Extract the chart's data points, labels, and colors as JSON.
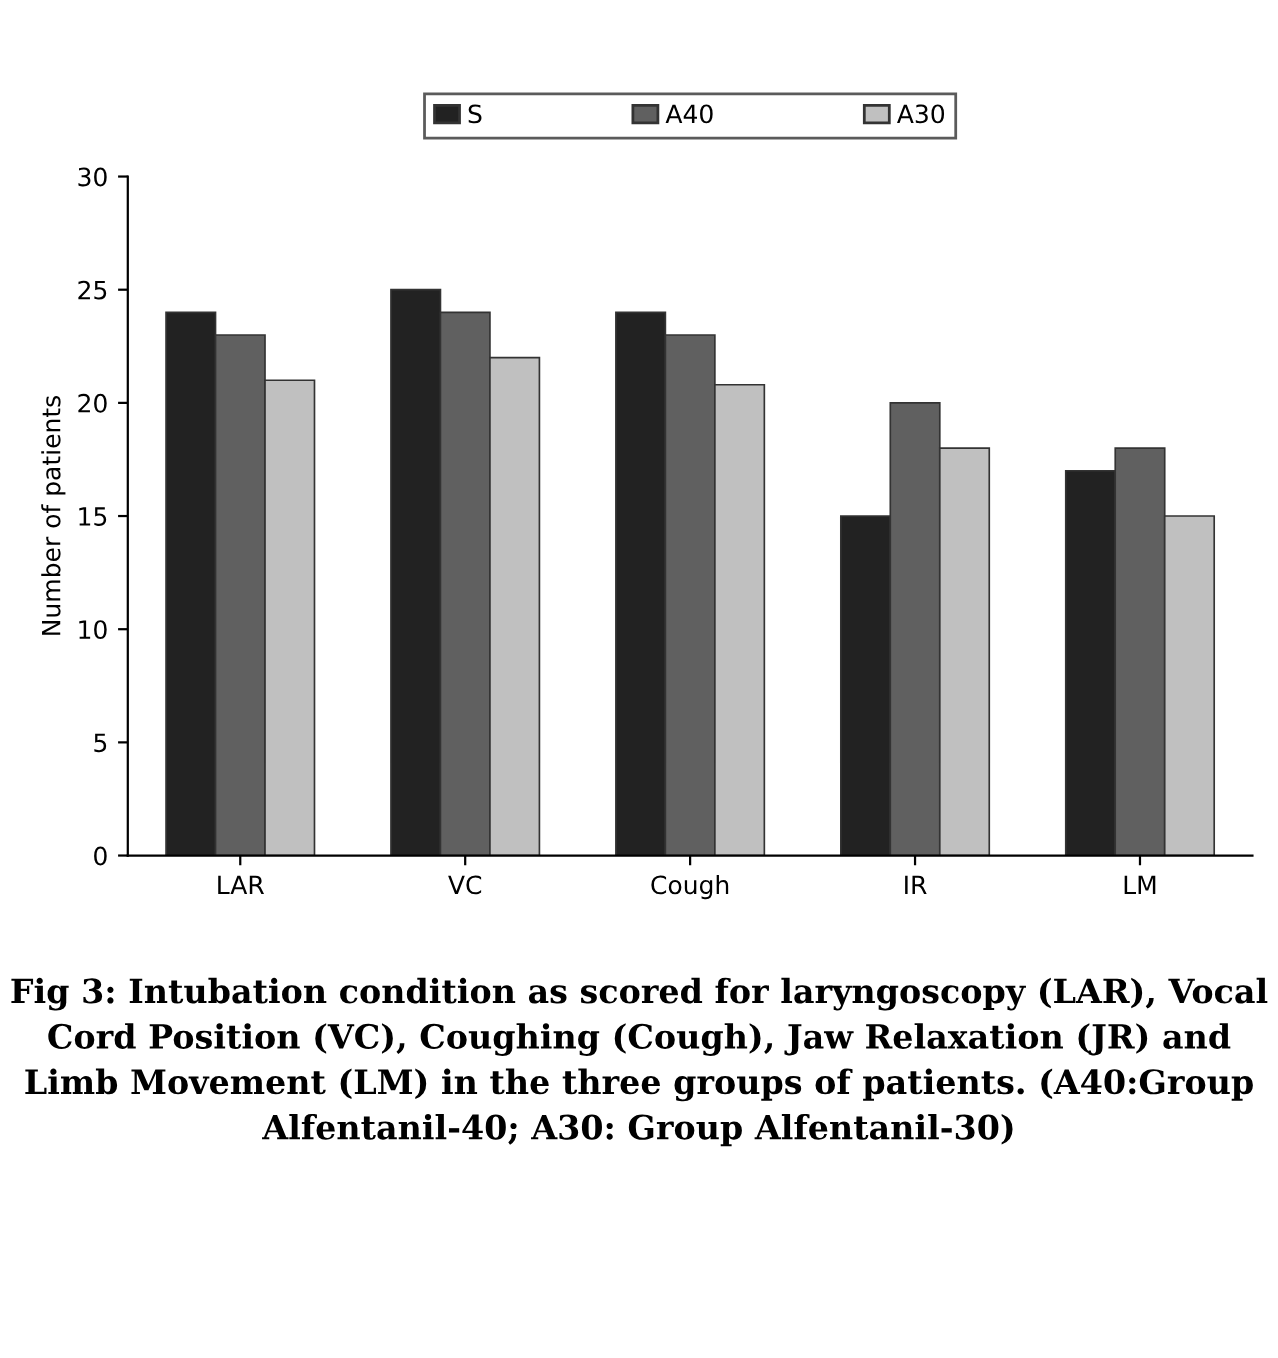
{
  "chart_data": {
    "type": "bar",
    "ylabel": "Number of patients",
    "categories": [
      "LAR",
      "VC",
      "Cough",
      "IR",
      "LM"
    ],
    "series": [
      {
        "name": "S",
        "color": "#222222",
        "values": [
          24,
          25,
          24,
          15,
          17
        ]
      },
      {
        "name": "A40",
        "color": "#606060",
        "values": [
          23,
          24,
          23,
          20,
          18
        ]
      },
      {
        "name": "A30",
        "color": "#c0c0c0",
        "values": [
          21,
          22,
          20.8,
          18,
          15
        ]
      }
    ],
    "ylim": [
      0,
      30
    ],
    "yticks": [
      0,
      5,
      10,
      15,
      20,
      25,
      30
    ],
    "grid": false,
    "legend": "top",
    "annotations": [
      "Fig 3: Intubation condition as scored for laryngoscopy (LAR), Vocal Cord Position (VC), Coughing (Cough), Jaw Relaxation (JR) and Limb Movement (LM) in the three groups of patients. (A40:Group Alfentanil-40; A30: Group Alfentanil-30)"
    ]
  }
}
